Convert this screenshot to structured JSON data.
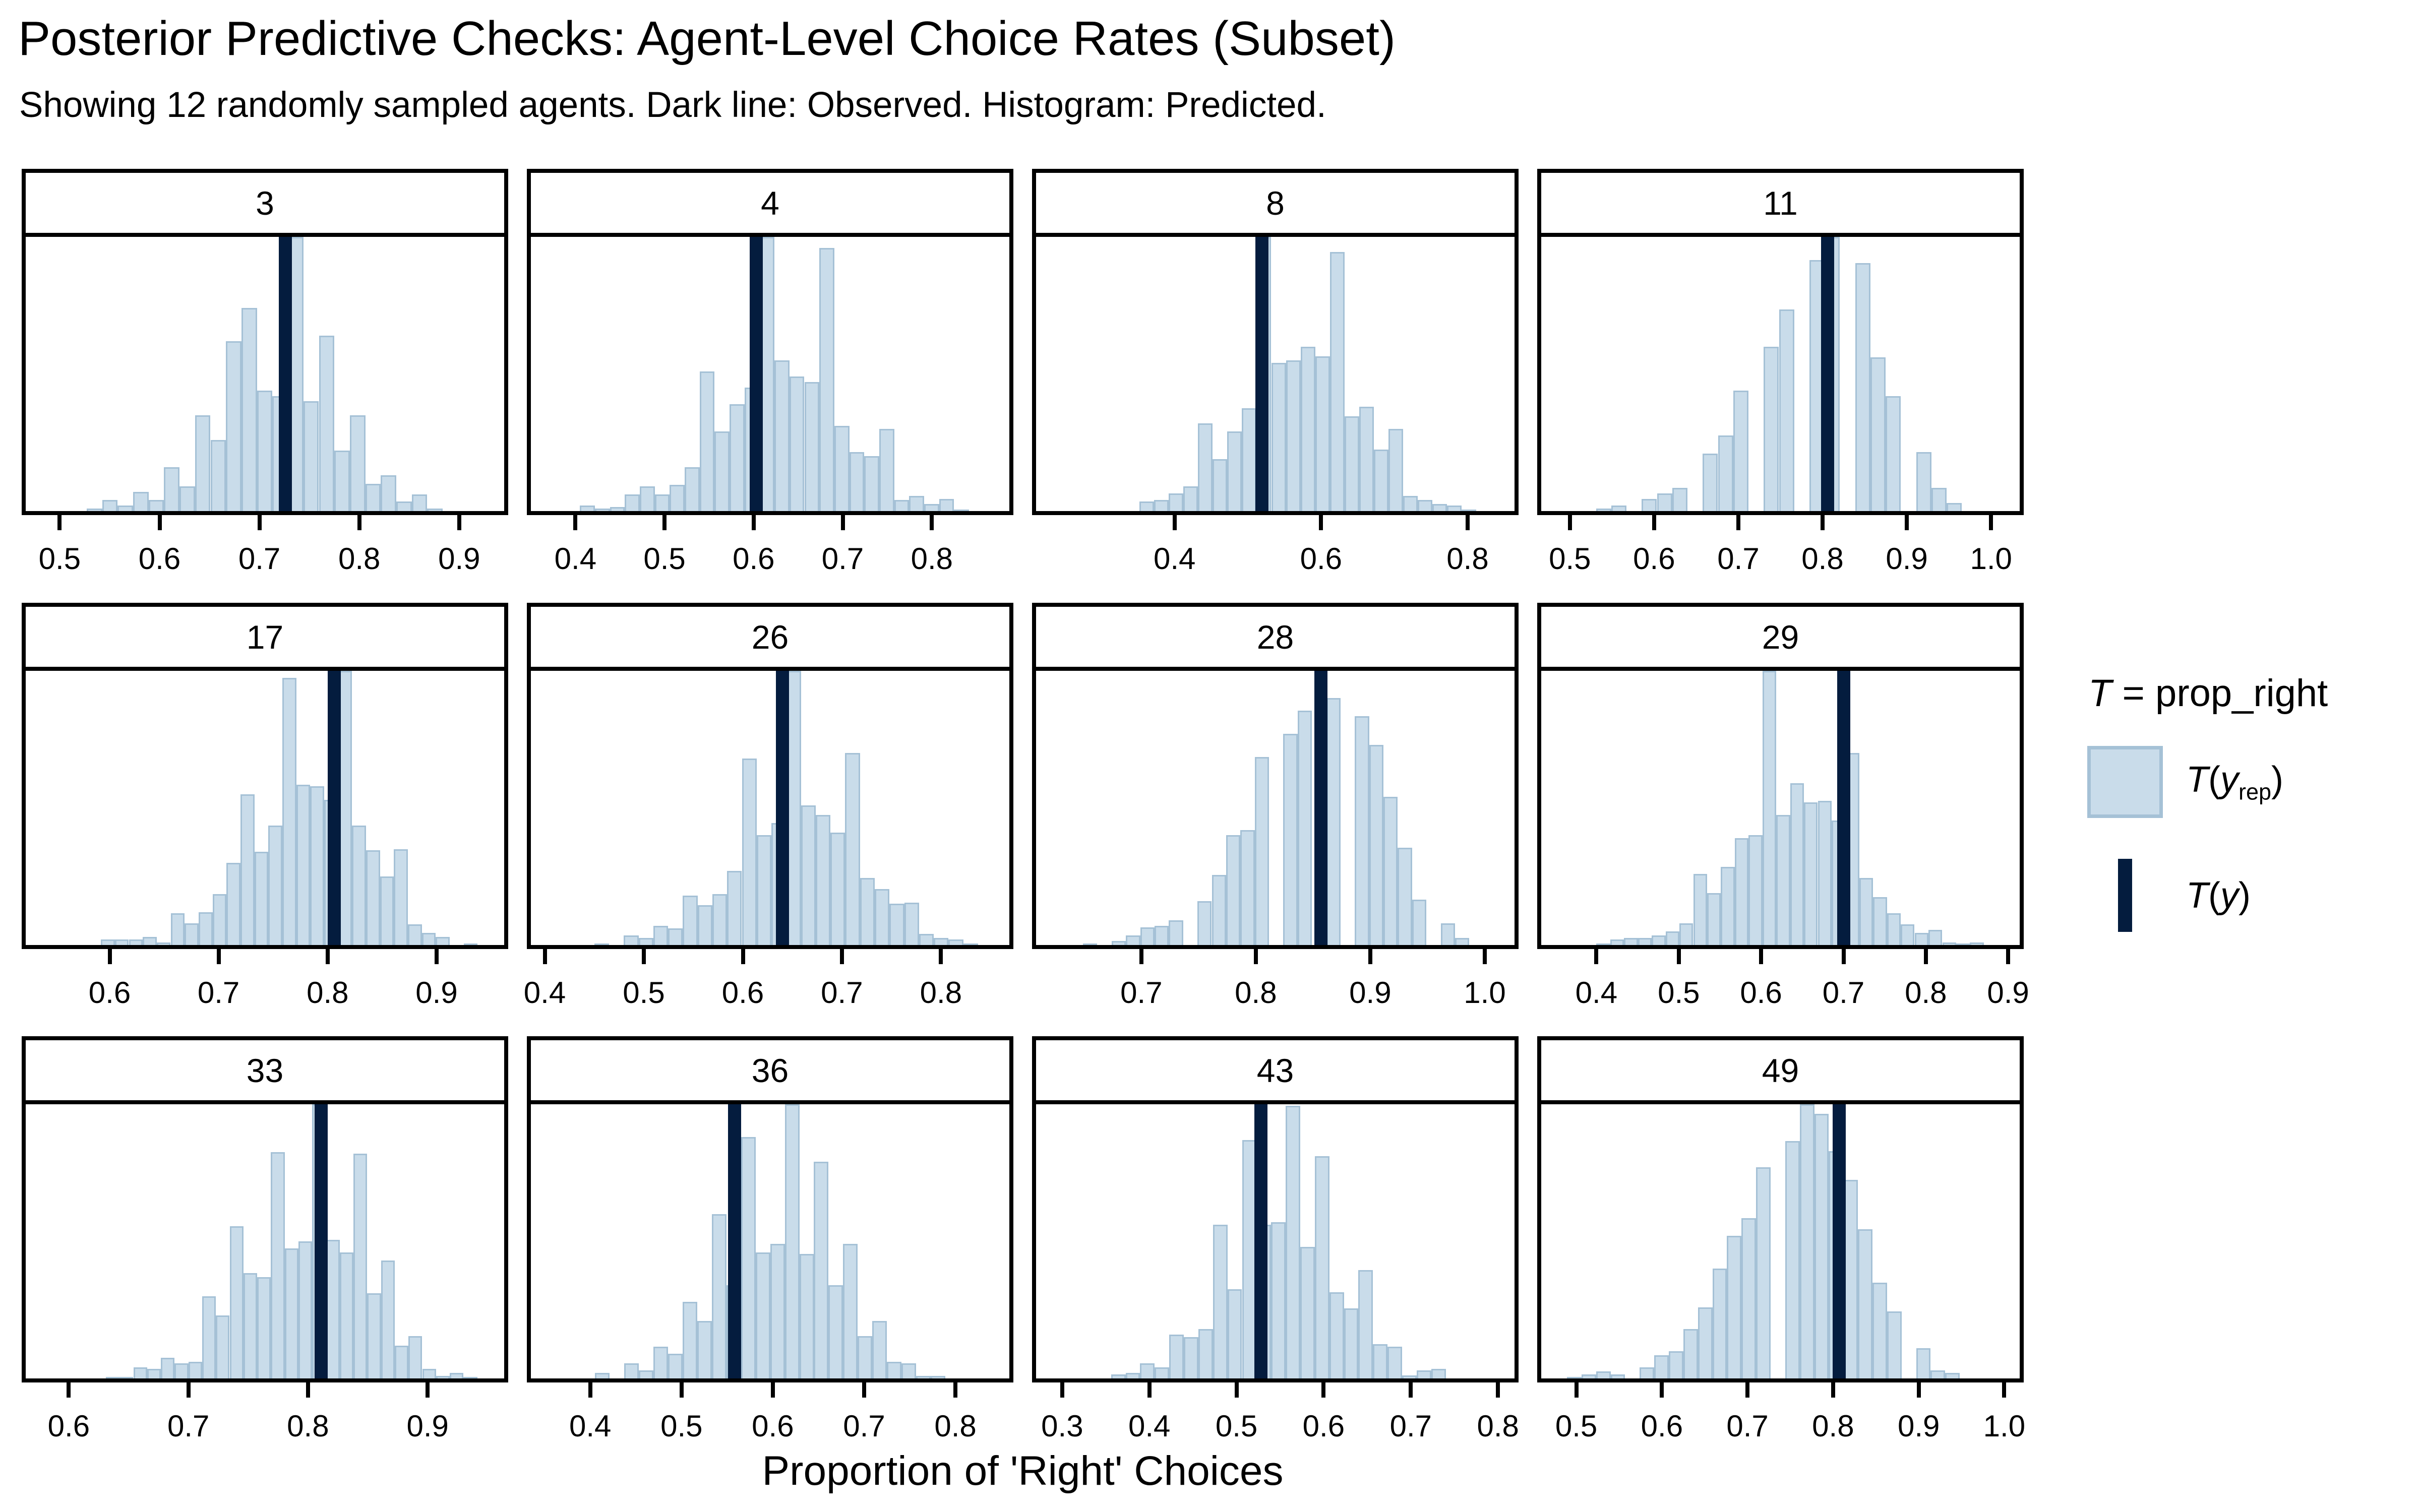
{
  "header": {
    "title": "Posterior Predictive Checks: Agent-Level Choice Rates (Subset)",
    "subtitle": "Showing 12 randomly sampled agents. Dark line: Observed. Histogram: Predicted."
  },
  "axis": {
    "x_title": "Proportion of 'Right' Choices"
  },
  "legend": {
    "title_t": "T",
    "title_rest": " = prop_right",
    "item_yrep": {
      "t": "T",
      "open": "(",
      "y": "y",
      "sub": "rep",
      "close": ")"
    },
    "item_y": {
      "t": "T",
      "open": "(",
      "y": "y",
      "close": ")"
    }
  },
  "colors": {
    "hist_fill": "#c9dcea",
    "hist_stroke": "#a5c1d6",
    "observed_line": "#041c3e",
    "axis_black": "#000000",
    "background": "#ffffff"
  },
  "chart_data": {
    "type": "bar",
    "subtype": "ppc_stat_grouped_histograms",
    "stat_name": "prop_right",
    "xlabel": "Proportion of 'Right' Choices",
    "grid": {
      "rows": 3,
      "cols": 4
    },
    "facets": [
      {
        "label": "3",
        "x_range": [
          0.466,
          0.945
        ],
        "ticks": [
          0.5,
          0.6,
          0.7,
          0.8,
          0.9
        ],
        "t_y": 0.726,
        "bars": {
          "start": 0.527,
          "binwidth": 0.0155,
          "heights": [
            0.01,
            0.04,
            0.02,
            0.07,
            0.04,
            0.16,
            0.09,
            0.35,
            0.26,
            0.62,
            0.74,
            0.44,
            0.42,
            1.0,
            0.4,
            0.64,
            0.22,
            0.35,
            0.1,
            0.13,
            0.035,
            0.06,
            0.01
          ]
        }
      },
      {
        "label": "4",
        "x_range": [
          0.35,
          0.887
        ],
        "ticks": [
          0.4,
          0.5,
          0.6,
          0.7,
          0.8
        ],
        "t_y": 0.603,
        "bars": {
          "start": 0.405,
          "binwidth": 0.0168,
          "heights": [
            0.02,
            0.01,
            0.015,
            0.06,
            0.09,
            0.06,
            0.095,
            0.16,
            0.51,
            0.29,
            0.39,
            0.45,
            1.0,
            0.55,
            0.49,
            0.47,
            0.96,
            0.31,
            0.215,
            0.2,
            0.3,
            0.04,
            0.055,
            0.025,
            0.045,
            0.005
          ]
        }
      },
      {
        "label": "8",
        "x_range": [
          0.211,
          0.864
        ],
        "ticks": [
          0.4,
          0.6,
          0.8
        ],
        "t_y": 0.519,
        "bars": {
          "start": 0.352,
          "binwidth": 0.02,
          "heights": [
            0.035,
            0.04,
            0.065,
            0.09,
            0.32,
            0.19,
            0.29,
            0.375,
            1.0,
            0.54,
            0.55,
            0.6,
            0.565,
            0.945,
            0.345,
            0.38,
            0.225,
            0.3,
            0.055,
            0.04,
            0.025,
            0.02,
            0.003
          ]
        }
      },
      {
        "label": "11",
        "x_range": [
          0.466,
          1.034
        ],
        "ticks": [
          0.5,
          0.6,
          0.7,
          0.8,
          0.9,
          1.0
        ],
        "t_y": 0.806,
        "bars": {
          "start": 0.531,
          "binwidth": 0.0181,
          "heights": [
            0.01,
            0.02,
            0.0,
            0.045,
            0.065,
            0.085,
            0.0,
            0.21,
            0.275,
            0.44,
            0.0,
            0.6,
            0.735,
            0.0,
            0.915,
            1.0,
            0.0,
            0.905,
            0.56,
            0.42,
            0.0,
            0.215,
            0.085,
            0.03
          ]
        }
      },
      {
        "label": "17",
        "x_range": [
          0.523,
          0.962
        ],
        "ticks": [
          0.6,
          0.7,
          0.8,
          0.9
        ],
        "t_y": 0.806,
        "bars": {
          "start": 0.592,
          "binwidth": 0.0128,
          "heights": [
            0.02,
            0.02,
            0.02,
            0.03,
            0.01,
            0.115,
            0.08,
            0.12,
            0.185,
            0.3,
            0.55,
            0.34,
            0.435,
            0.975,
            0.585,
            0.58,
            0.53,
            1.0,
            0.435,
            0.345,
            0.25,
            0.35,
            0.075,
            0.045,
            0.03,
            0.0,
            0.005
          ]
        }
      },
      {
        "label": "26",
        "x_range": [
          0.386,
          0.869
        ],
        "ticks": [
          0.4,
          0.5,
          0.6,
          0.7,
          0.8
        ],
        "t_y": 0.64,
        "bars": {
          "start": 0.45,
          "binwidth": 0.0149,
          "heights": [
            0.005,
            0.0,
            0.035,
            0.025,
            0.07,
            0.06,
            0.18,
            0.145,
            0.185,
            0.27,
            0.68,
            0.4,
            0.445,
            1.0,
            0.51,
            0.475,
            0.41,
            0.7,
            0.245,
            0.205,
            0.15,
            0.155,
            0.04,
            0.025,
            0.02,
            0.005
          ]
        }
      },
      {
        "label": "28",
        "x_range": [
          0.608,
          1.026
        ],
        "ticks": [
          0.7,
          0.8,
          0.9,
          1.0
        ],
        "t_y": 0.857,
        "bars": {
          "start": 0.649,
          "binwidth": 0.0125,
          "heights": [
            0.005,
            0.0,
            0.015,
            0.035,
            0.065,
            0.07,
            0.09,
            0.0,
            0.16,
            0.255,
            0.4,
            0.42,
            0.685,
            0.0,
            0.77,
            0.855,
            0.0,
            0.9,
            0.0,
            0.835,
            0.73,
            0.54,
            0.355,
            0.165,
            0.0,
            0.08,
            0.025
          ]
        }
      },
      {
        "label": "29",
        "x_range": [
          0.333,
          0.914
        ],
        "ticks": [
          0.4,
          0.5,
          0.6,
          0.7,
          0.8,
          0.9
        ],
        "t_y": 0.7,
        "bars": {
          "start": 0.4,
          "binwidth": 0.0168,
          "heights": [
            0.005,
            0.02,
            0.025,
            0.025,
            0.035,
            0.05,
            0.08,
            0.26,
            0.19,
            0.285,
            0.39,
            0.4,
            1.0,
            0.475,
            0.59,
            0.52,
            0.525,
            0.455,
            0.7,
            0.245,
            0.175,
            0.115,
            0.075,
            0.045,
            0.055,
            0.01,
            0.005,
            0.01
          ]
        }
      },
      {
        "label": "33",
        "x_range": [
          0.564,
          0.964
        ],
        "ticks": [
          0.6,
          0.7,
          0.8,
          0.9
        ],
        "t_y": 0.811,
        "bars": {
          "start": 0.631,
          "binwidth": 0.0115,
          "heights": [
            0.005,
            0.005,
            0.04,
            0.035,
            0.075,
            0.055,
            0.06,
            0.3,
            0.23,
            0.555,
            0.385,
            0.37,
            0.825,
            0.475,
            0.5,
            1.0,
            0.505,
            0.46,
            0.82,
            0.31,
            0.43,
            0.12,
            0.155,
            0.035,
            0.01,
            0.02,
            0.005
          ]
        }
      },
      {
        "label": "36",
        "x_range": [
          0.335,
          0.859
        ],
        "ticks": [
          0.4,
          0.5,
          0.6,
          0.7,
          0.8
        ],
        "t_y": 0.558,
        "bars": {
          "start": 0.405,
          "binwidth": 0.016,
          "heights": [
            0.02,
            0.0,
            0.055,
            0.03,
            0.115,
            0.09,
            0.28,
            0.21,
            0.6,
            0.34,
            0.88,
            0.46,
            0.49,
            1.0,
            0.455,
            0.79,
            0.34,
            0.49,
            0.155,
            0.21,
            0.06,
            0.055,
            0.01,
            0.01
          ]
        }
      },
      {
        "label": "43",
        "x_range": [
          0.27,
          0.819
        ],
        "ticks": [
          0.3,
          0.4,
          0.5,
          0.6,
          0.7,
          0.8
        ],
        "t_y": 0.528,
        "bars": {
          "start": 0.356,
          "binwidth": 0.0167,
          "heights": [
            0.015,
            0.02,
            0.055,
            0.04,
            0.16,
            0.15,
            0.18,
            0.56,
            0.325,
            0.87,
            0.56,
            0.57,
            0.995,
            0.48,
            0.81,
            0.315,
            0.255,
            0.395,
            0.125,
            0.115,
            0.012,
            0.03,
            0.035
          ]
        }
      },
      {
        "label": "49",
        "x_range": [
          0.459,
          1.018
        ],
        "ticks": [
          0.5,
          0.6,
          0.7,
          0.8,
          0.9,
          1.0
        ],
        "t_y": 0.807,
        "bars": {
          "start": 0.489,
          "binwidth": 0.017,
          "heights": [
            0.005,
            0.015,
            0.025,
            0.015,
            0.0,
            0.04,
            0.085,
            0.1,
            0.18,
            0.26,
            0.4,
            0.52,
            0.585,
            0.77,
            0.0,
            0.865,
            1.0,
            0.965,
            0.83,
            0.725,
            0.545,
            0.35,
            0.245,
            0.0,
            0.11,
            0.03,
            0.02
          ]
        }
      }
    ]
  }
}
